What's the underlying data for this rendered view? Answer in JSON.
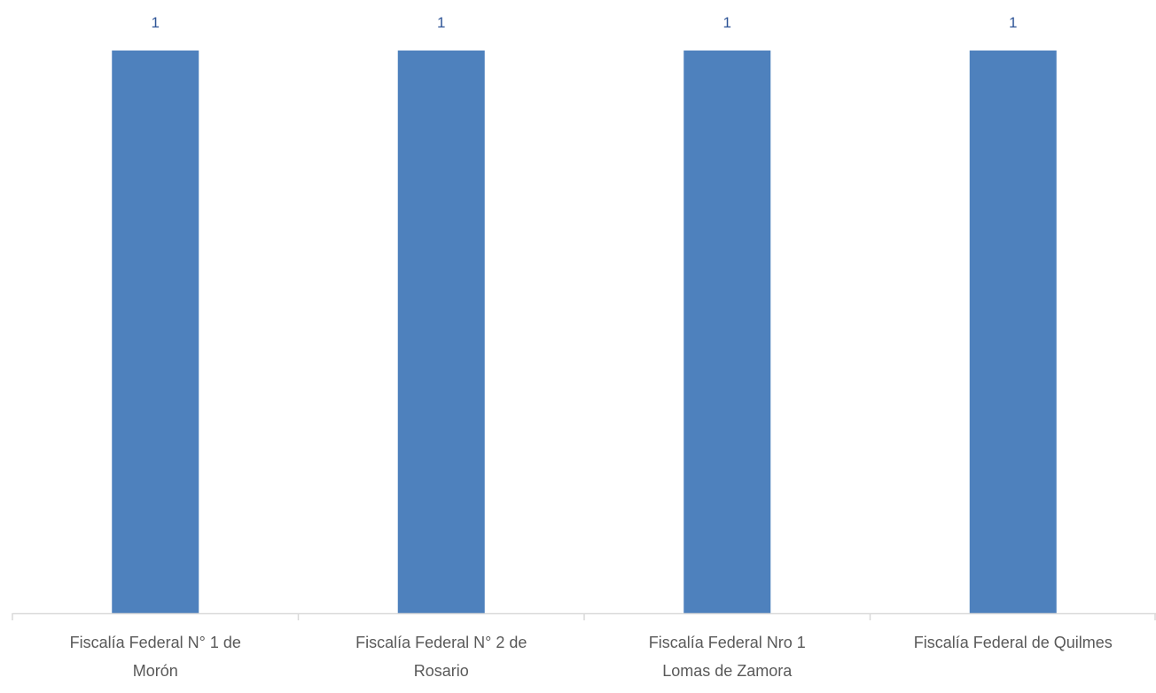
{
  "chart_data": {
    "type": "bar",
    "title": "",
    "xlabel": "",
    "ylabel": "",
    "categories": [
      [
        "Fiscalía Federal N° 1 de",
        "Morón"
      ],
      [
        "Fiscalía Federal N° 2 de",
        "Rosario"
      ],
      [
        "Fiscalía Federal Nro 1",
        "Lomas de Zamora"
      ],
      [
        "Fiscalía Federal de Quilmes"
      ]
    ],
    "values": [
      1,
      1,
      1,
      1
    ],
    "data_labels": [
      "1",
      "1",
      "1",
      "1"
    ],
    "ylim": [
      0,
      1
    ],
    "grid": false,
    "legend": false,
    "colors": {
      "bar": "#4e81bd",
      "data_label": "#2f5597",
      "axis": "#d9d9d9",
      "tick_label": "#595959"
    }
  }
}
